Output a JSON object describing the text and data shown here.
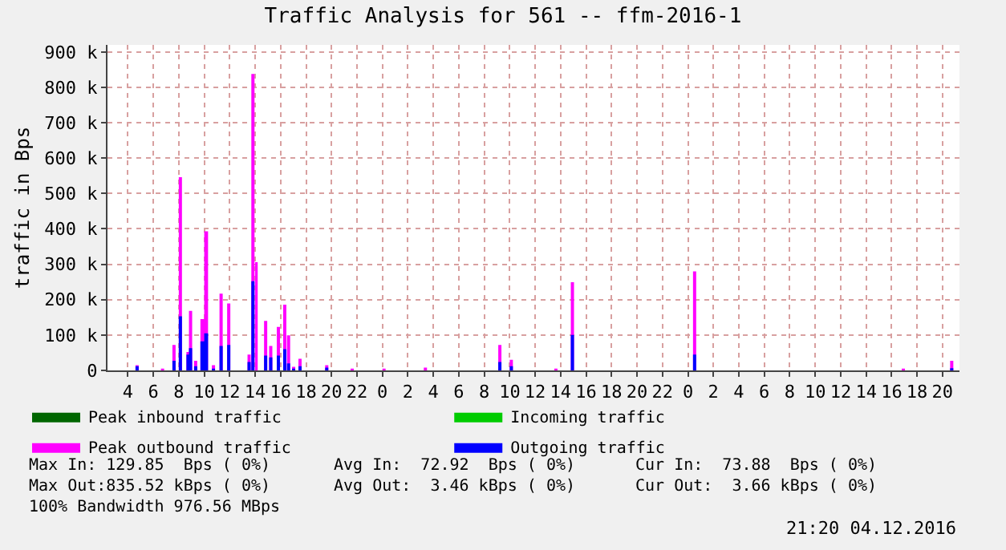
{
  "chart_data": {
    "type": "area",
    "title": "Traffic Analysis for 561 -- ffm-2016-1",
    "ylabel": "traffic in Bps",
    "xlim": [
      "2016-12-02T02:24",
      "2016-12-04T21:20"
    ],
    "xticks": [
      {
        "value": "2016-12-02T04:00",
        "label": "4"
      },
      {
        "value": "2016-12-02T06:00",
        "label": "6"
      },
      {
        "value": "2016-12-02T08:00",
        "label": "8"
      },
      {
        "value": "2016-12-02T10:00",
        "label": "10"
      },
      {
        "value": "2016-12-02T12:00",
        "label": "12"
      },
      {
        "value": "2016-12-02T14:00",
        "label": "14"
      },
      {
        "value": "2016-12-02T16:00",
        "label": "16"
      },
      {
        "value": "2016-12-02T18:00",
        "label": "18"
      },
      {
        "value": "2016-12-02T20:00",
        "label": "20"
      },
      {
        "value": "2016-12-02T22:00",
        "label": "22"
      },
      {
        "value": "2016-12-03T00:00",
        "label": "0"
      },
      {
        "value": "2016-12-03T02:00",
        "label": "2"
      },
      {
        "value": "2016-12-03T04:00",
        "label": "4"
      },
      {
        "value": "2016-12-03T06:00",
        "label": "6"
      },
      {
        "value": "2016-12-03T08:00",
        "label": "8"
      },
      {
        "value": "2016-12-03T10:00",
        "label": "10"
      },
      {
        "value": "2016-12-03T12:00",
        "label": "12"
      },
      {
        "value": "2016-12-03T14:00",
        "label": "14"
      },
      {
        "value": "2016-12-03T16:00",
        "label": "16"
      },
      {
        "value": "2016-12-03T18:00",
        "label": "18"
      },
      {
        "value": "2016-12-03T20:00",
        "label": "20"
      },
      {
        "value": "2016-12-03T22:00",
        "label": "22"
      },
      {
        "value": "2016-12-04T00:00",
        "label": "0"
      },
      {
        "value": "2016-12-04T02:00",
        "label": "2"
      },
      {
        "value": "2016-12-04T04:00",
        "label": "4"
      },
      {
        "value": "2016-12-04T06:00",
        "label": "6"
      },
      {
        "value": "2016-12-04T08:00",
        "label": "8"
      },
      {
        "value": "2016-12-04T10:00",
        "label": "10"
      },
      {
        "value": "2016-12-04T12:00",
        "label": "12"
      },
      {
        "value": "2016-12-04T14:00",
        "label": "14"
      },
      {
        "value": "2016-12-04T16:00",
        "label": "16"
      },
      {
        "value": "2016-12-04T18:00",
        "label": "18"
      },
      {
        "value": "2016-12-04T20:00",
        "label": "20"
      }
    ],
    "ylim": [
      0,
      920000
    ],
    "yticks": [
      0,
      {
        "value": 100000,
        "label": "100 k"
      },
      {
        "value": 200000,
        "label": "200 k"
      },
      {
        "value": 300000,
        "label": "300 k"
      },
      {
        "value": 400000,
        "label": "400 k"
      },
      {
        "value": 500000,
        "label": "500 k"
      },
      {
        "value": 600000,
        "label": "600 k"
      },
      {
        "value": 700000,
        "label": "700 k"
      },
      {
        "value": 800000,
        "label": "800 k"
      },
      {
        "value": 900000,
        "label": "900 k"
      }
    ],
    "grid": true,
    "legend": "bottom",
    "series": [
      {
        "name": "Peak inbound traffic",
        "color": "#006600"
      },
      {
        "name": "Incoming traffic",
        "color": "#00cc00"
      },
      {
        "name": "Peak outbound traffic",
        "color": "#ff00ff",
        "x": [
          "2016-12-02T02:24",
          "2016-12-02T04:36",
          "2016-12-02T04:51",
          "2016-12-02T06:36",
          "2016-12-02T06:51",
          "2016-12-02T07:30",
          "2016-12-02T07:45",
          "2016-12-02T08:00",
          "2016-12-02T08:15",
          "2016-12-02T08:36",
          "2016-12-02T08:48",
          "2016-12-02T09:03",
          "2016-12-02T09:12",
          "2016-12-02T09:27",
          "2016-12-02T09:42",
          "2016-12-02T10:00",
          "2016-12-02T10:18",
          "2016-12-02T10:36",
          "2016-12-02T10:51",
          "2016-12-02T11:12",
          "2016-12-02T11:27",
          "2016-12-02T11:48",
          "2016-12-02T12:03",
          "2016-12-02T13:24",
          "2016-12-02T13:39",
          "2016-12-02T13:42",
          "2016-12-02T13:57",
          "2016-12-02T14:00",
          "2016-12-02T14:12",
          "2016-12-02T14:42",
          "2016-12-02T14:57",
          "2016-12-02T15:06",
          "2016-12-02T15:21",
          "2016-12-02T15:42",
          "2016-12-02T15:57",
          "2016-12-02T16:12",
          "2016-12-02T16:27",
          "2016-12-02T16:30",
          "2016-12-02T16:45",
          "2016-12-02T16:54",
          "2016-12-02T17:09",
          "2016-12-02T17:24",
          "2016-12-02T17:39",
          "2016-12-02T19:30",
          "2016-12-02T19:45",
          "2016-12-02T21:30",
          "2016-12-02T21:45",
          "2016-12-03T00:00",
          "2016-12-03T00:15",
          "2016-12-03T03:15",
          "2016-12-03T03:30",
          "2016-12-03T09:06",
          "2016-12-03T09:21",
          "2016-12-03T10:00",
          "2016-12-03T10:15",
          "2016-12-03T13:30",
          "2016-12-03T13:45",
          "2016-12-03T14:48",
          "2016-12-03T15:03",
          "2016-12-04T00:24",
          "2016-12-04T00:39",
          "2016-12-04T16:48",
          "2016-12-04T17:03",
          "2016-12-04T20:36",
          "2016-12-04T20:51"
        ],
        "values": [
          0,
          15000,
          0,
          5000,
          0,
          72000,
          0,
          546000,
          0,
          52000,
          168000,
          0,
          27000,
          0,
          145000,
          393000,
          0,
          15000,
          0,
          217000,
          0,
          189000,
          0,
          45000,
          0,
          838000,
          0,
          306000,
          0,
          140000,
          0,
          69000,
          0,
          123000,
          0,
          186000,
          0,
          99000,
          0,
          10000,
          0,
          33000,
          0,
          15000,
          0,
          5000,
          0,
          5000,
          0,
          8000,
          0,
          72000,
          0,
          30000,
          0,
          5000,
          0,
          249000,
          0,
          280000,
          0,
          5000,
          0,
          27000,
          0
        ]
      },
      {
        "name": "Outgoing traffic",
        "color": "#0000ff",
        "x": [
          "2016-12-02T02:24",
          "2016-12-02T04:36",
          "2016-12-02T04:51",
          "2016-12-02T07:30",
          "2016-12-02T07:45",
          "2016-12-02T08:00",
          "2016-12-02T08:15",
          "2016-12-02T08:36",
          "2016-12-02T08:48",
          "2016-12-02T09:03",
          "2016-12-02T09:12",
          "2016-12-02T09:27",
          "2016-12-02T09:42",
          "2016-12-02T10:00",
          "2016-12-02T10:18",
          "2016-12-02T10:36",
          "2016-12-02T10:51",
          "2016-12-02T11:12",
          "2016-12-02T11:27",
          "2016-12-02T11:48",
          "2016-12-02T12:03",
          "2016-12-02T13:24",
          "2016-12-02T13:39",
          "2016-12-02T13:42",
          "2016-12-02T13:57",
          "2016-12-02T14:42",
          "2016-12-02T14:57",
          "2016-12-02T15:06",
          "2016-12-02T15:21",
          "2016-12-02T15:42",
          "2016-12-02T15:57",
          "2016-12-02T16:12",
          "2016-12-02T16:27",
          "2016-12-02T16:30",
          "2016-12-02T16:45",
          "2016-12-02T16:54",
          "2016-12-02T17:09",
          "2016-12-02T17:24",
          "2016-12-02T17:39",
          "2016-12-02T19:30",
          "2016-12-02T19:45",
          "2016-12-03T09:06",
          "2016-12-03T09:21",
          "2016-12-03T10:00",
          "2016-12-03T10:15",
          "2016-12-03T14:48",
          "2016-12-03T15:03",
          "2016-12-04T00:24",
          "2016-12-04T00:39",
          "2016-12-04T20:36",
          "2016-12-04T20:51"
        ],
        "values": [
          0,
          12000,
          0,
          27000,
          0,
          153000,
          0,
          45000,
          63000,
          0,
          12000,
          0,
          82000,
          105000,
          0,
          5000,
          0,
          69000,
          0,
          72000,
          0,
          24000,
          0,
          252000,
          0,
          42000,
          0,
          37000,
          0,
          42000,
          0,
          60000,
          0,
          20000,
          0,
          5000,
          0,
          12000,
          0,
          8000,
          0,
          24000,
          0,
          12000,
          0,
          100000,
          0,
          45000,
          0,
          6000,
          0
        ]
      }
    ],
    "annotations": [
      "Max In: 129.85  Bps ( 0%)",
      "Avg In:  72.92  Bps ( 0%)",
      "Cur In:  73.88  Bps ( 0%)",
      "Max Out:835.52 kBps ( 0%)",
      "Avg Out:  3.46 kBps ( 0%)",
      "Cur Out:  3.66 kBps ( 0%)",
      "100% Bandwidth 976.56 MBps",
      "21:20 04.12.2016"
    ]
  }
}
